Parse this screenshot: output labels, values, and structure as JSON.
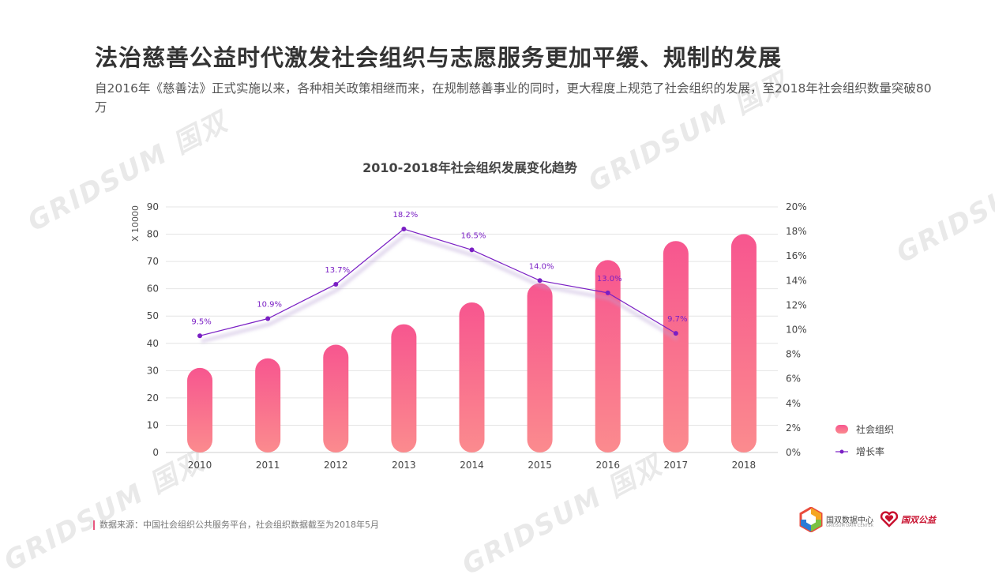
{
  "header": {
    "title": "法治慈善公益时代激发社会组织与志愿服务更加平缓、规制的发展",
    "subtitle": "自2016年《慈善法》正式实施以来，各种相关政策相继而来，在规制慈善事业的同时，更大程度上规范了社会组织的发展，至2018年社会组织数量突破80万"
  },
  "watermark_text": "GRIDSUM 国双",
  "chart_data": {
    "type": "bar",
    "title": "2010-2018年社会组织发展变化趋势",
    "categories": [
      "2010",
      "2011",
      "2012",
      "2013",
      "2014",
      "2015",
      "2016",
      "2017",
      "2018"
    ],
    "ylabel": "X 10000",
    "ylim": [
      0,
      90
    ],
    "yticks": [
      "0",
      "10",
      "20",
      "30",
      "40",
      "50",
      "60",
      "70",
      "80",
      "90"
    ],
    "y2lim": [
      0,
      20
    ],
    "y2ticks": [
      "0%",
      "2%",
      "4%",
      "6%",
      "8%",
      "10%",
      "12%",
      "14%",
      "16%",
      "18%",
      "20%"
    ],
    "series": [
      {
        "name": "社会组织",
        "type": "bar",
        "values": [
          31,
          34.5,
          39.5,
          47,
          55,
          62,
          70.5,
          77.5,
          80
        ]
      },
      {
        "name": "增长率",
        "type": "line",
        "values": [
          9.5,
          10.9,
          13.7,
          18.2,
          16.5,
          14.0,
          13.0,
          9.7,
          null
        ],
        "labels": [
          "9.5%",
          "10.9%",
          "13.7%",
          "18.2%",
          "16.5%",
          "14.0%",
          "13.0%",
          "9.7%",
          ""
        ]
      }
    ],
    "legend_position": "bottom-right",
    "colors": {
      "bar_top": "#f7568f",
      "bar_bottom": "#fb8b8e",
      "line": "#7a1fc4",
      "grid": "#e4e4e4"
    }
  },
  "footer": {
    "source": "数据来源：中国社会组织公共服务平台，社会组织数据截至为2018年5月",
    "logo1_text": "国双数据中心",
    "logo1_sub": "GRIDSUM DATA CENTER",
    "logo2_text": "国双公益"
  }
}
